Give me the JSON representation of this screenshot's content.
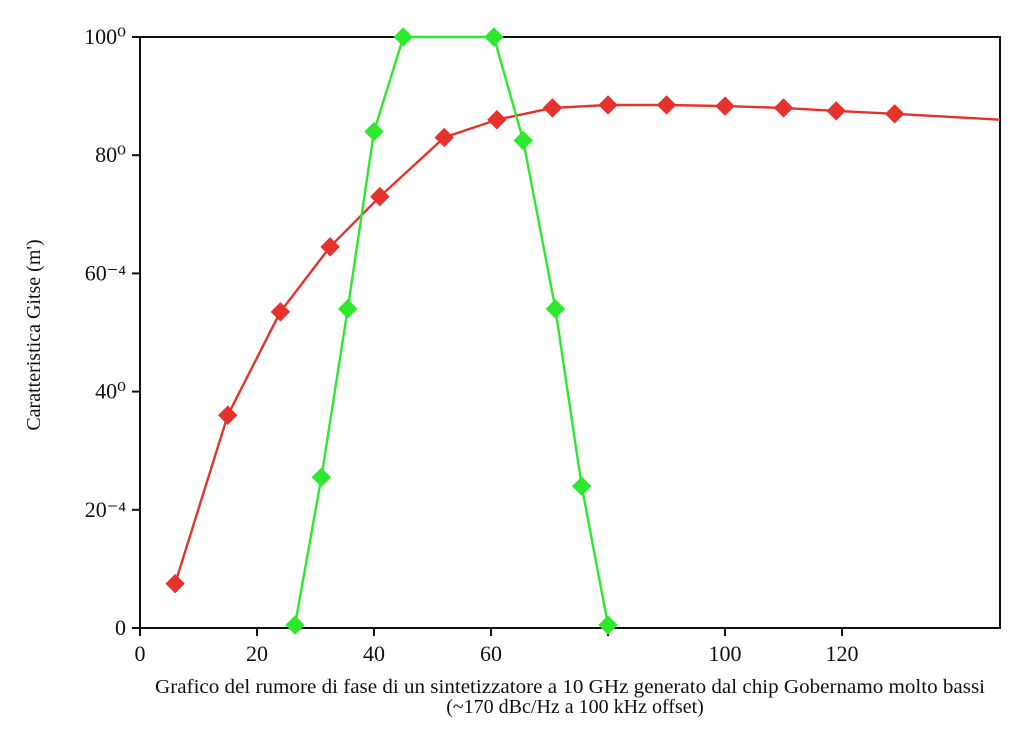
{
  "chart_data": {
    "type": "line",
    "title": "",
    "xlabel": "Grafico del rumore di fase di un sintetizzatore a 10 GHz generato dal chip Gobernamo molto bassi",
    "xlabel_line2": "(~170 dBc/Hz a 100 kHz offset)",
    "ylabel": "Caratteristica Gitse (m')",
    "x_ticks": [
      0,
      20,
      40,
      60,
      80,
      100,
      120
    ],
    "x_tick_labels": [
      "0",
      "20",
      "40",
      "60",
      "",
      "100",
      "120"
    ],
    "y_ticks": [
      0,
      20,
      40,
      60,
      80,
      100
    ],
    "y_tick_labels": [
      "0",
      "20⁻⁴",
      "40⁰",
      "60⁻⁴",
      "80⁰",
      "100⁰"
    ],
    "xlim": [
      0,
      147
    ],
    "ylim": [
      0,
      100
    ],
    "grid": false,
    "series": [
      {
        "name": "red",
        "color": "#e5322d",
        "marker": "diamond",
        "points": [
          [
            6,
            7.5
          ],
          [
            15,
            36
          ],
          [
            24,
            53.5
          ],
          [
            32.5,
            64.5
          ],
          [
            41,
            73
          ],
          [
            52,
            83
          ],
          [
            61,
            86
          ],
          [
            70.5,
            88
          ],
          [
            80,
            88.5
          ],
          [
            90,
            88.5
          ],
          [
            100,
            88.3
          ],
          [
            110,
            88
          ],
          [
            119,
            87.5
          ],
          [
            129,
            87
          ],
          [
            147,
            86
          ]
        ],
        "marker_indices": [
          0,
          1,
          2,
          3,
          4,
          5,
          6,
          7,
          8,
          9,
          10,
          11,
          12,
          13
        ]
      },
      {
        "name": "green",
        "color": "#2ee82e",
        "marker": "diamond",
        "points": [
          [
            26.5,
            0.5
          ],
          [
            31,
            25.5
          ],
          [
            35.5,
            54
          ],
          [
            40,
            84
          ],
          [
            45,
            100
          ],
          [
            60.5,
            100
          ],
          [
            65.5,
            82.5
          ],
          [
            71,
            54
          ],
          [
            75.5,
            24
          ],
          [
            80,
            0.5
          ]
        ],
        "marker_indices": [
          0,
          1,
          2,
          3,
          4,
          5,
          6,
          7,
          8,
          9
        ]
      }
    ]
  }
}
